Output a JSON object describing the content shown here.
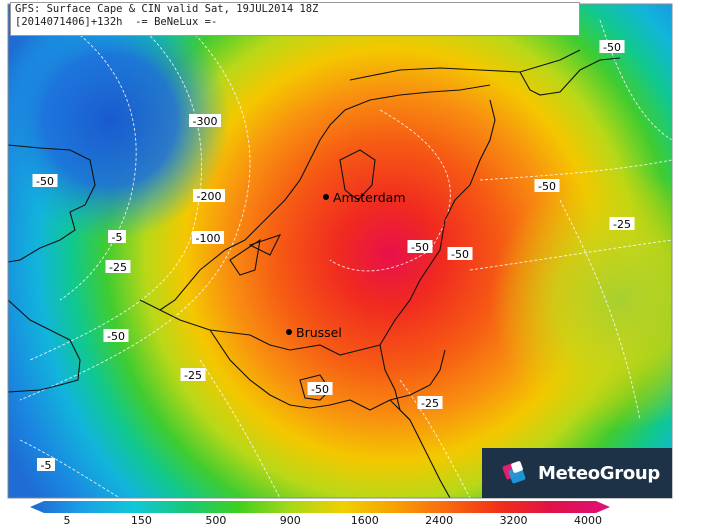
{
  "header": {
    "line1": "GFS: Surface Cape & CIN valid Sat, 19JUL2014 18Z",
    "line2": "[2014071406]+132h  -= BeNeLux =-"
  },
  "logo": {
    "name": "MeteoGroup"
  },
  "cities": [
    {
      "name": "Amsterdam"
    },
    {
      "name": "Brussel"
    }
  ],
  "cin_labels": [
    "-300",
    "-200",
    "-100",
    "-50",
    "-50",
    "-50",
    "-50",
    "-50",
    "-50",
    "-50",
    "-5",
    "-25",
    "-25",
    "-25",
    "-25",
    "-5"
  ],
  "colorbar": {
    "ticks": [
      "5",
      "150",
      "500",
      "900",
      "1600",
      "2400",
      "3200",
      "4000"
    ],
    "colors": [
      "#2266d0",
      "#1aa0e6",
      "#10c8d8",
      "#18c878",
      "#40d020",
      "#a8d818",
      "#f0d000",
      "#f8a000",
      "#f86810",
      "#f03018",
      "#e01048",
      "#e0107a"
    ]
  }
}
